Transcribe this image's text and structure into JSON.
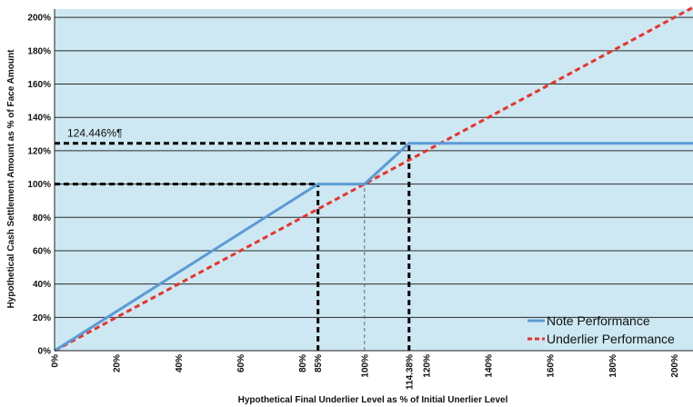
{
  "chart_data": {
    "type": "line",
    "title": "",
    "xlabel": "Hypothetical Final Underlier Level as % of Initial Unerlier Level",
    "ylabel": "Hypothetical Cash Settlement Amount as % of Face Amount",
    "xlim": [
      0,
      206
    ],
    "ylim": [
      0,
      205
    ],
    "x_ticks": [
      {
        "value": 0,
        "label": "0%"
      },
      {
        "value": 20,
        "label": "20%"
      },
      {
        "value": 40,
        "label": "40%"
      },
      {
        "value": 60,
        "label": "60%"
      },
      {
        "value": 80,
        "label": "80%"
      },
      {
        "value": 85,
        "label": "85%"
      },
      {
        "value": 100,
        "label": "100%"
      },
      {
        "value": 114.38,
        "label": "114.38%"
      },
      {
        "value": 120,
        "label": "120%"
      },
      {
        "value": 140,
        "label": "140%"
      },
      {
        "value": 160,
        "label": "160%"
      },
      {
        "value": 180,
        "label": "180%"
      },
      {
        "value": 200,
        "label": "200%"
      }
    ],
    "y_ticks": [
      {
        "value": 0,
        "label": "0%"
      },
      {
        "value": 20,
        "label": "20%"
      },
      {
        "value": 40,
        "label": "40%"
      },
      {
        "value": 60,
        "label": "60%"
      },
      {
        "value": 80,
        "label": "80%"
      },
      {
        "value": 100,
        "label": "100%"
      },
      {
        "value": 120,
        "label": "120%"
      },
      {
        "value": 140,
        "label": "140%"
      },
      {
        "value": 160,
        "label": "160%"
      },
      {
        "value": 180,
        "label": "180%"
      },
      {
        "value": 200,
        "label": "200%"
      }
    ],
    "grid": "horizontal",
    "legend_position": "bottom-right",
    "series": [
      {
        "name": "Note Performance",
        "style": "solid",
        "color": "#5b9bd5",
        "points": [
          [
            0,
            0
          ],
          [
            85,
            100
          ],
          [
            100,
            100
          ],
          [
            114.38,
            124.446
          ],
          [
            206,
            124.446
          ]
        ]
      },
      {
        "name": "Underlier Performance",
        "style": "dashed",
        "color": "#e8322b",
        "points": [
          [
            0,
            0
          ],
          [
            206,
            206
          ]
        ]
      }
    ],
    "annotation": {
      "text": "124.446%¶",
      "value": 124.446
    },
    "reference_lines": [
      {
        "from": [
          0,
          124.446
        ],
        "to": [
          114.38,
          124.446
        ],
        "style": "dashed",
        "color": "#000000"
      },
      {
        "from": [
          0,
          100
        ],
        "to": [
          85,
          100
        ],
        "style": "dashed",
        "color": "#000000"
      },
      {
        "from": [
          85,
          0
        ],
        "to": [
          85,
          100
        ],
        "style": "dashed",
        "color": "#000000"
      },
      {
        "from": [
          114.38,
          0
        ],
        "to": [
          114.38,
          124.446
        ],
        "style": "dashed",
        "color": "#000000"
      },
      {
        "from": [
          100,
          0
        ],
        "to": [
          100,
          100
        ],
        "style": "thin-dashed",
        "color": "#666666"
      }
    ],
    "plot_background": "#cde8f2"
  }
}
